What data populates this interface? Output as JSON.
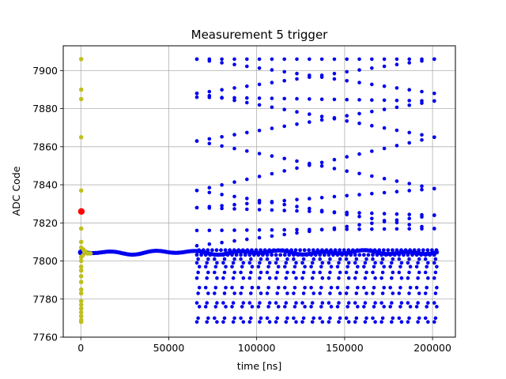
{
  "chart_data": {
    "type": "scatter",
    "title": "Measurement 5 trigger",
    "xlabel": "time [ns]",
    "ylabel": "ADC Code",
    "xlim": [
      -10000,
      213000
    ],
    "ylim": [
      7760,
      7913
    ],
    "xticks": [
      0,
      50000,
      100000,
      150000,
      200000
    ],
    "xtick_labels": [
      "0",
      "50000",
      "100000",
      "150000",
      "200000"
    ],
    "yticks": [
      7760,
      7780,
      7800,
      7820,
      7840,
      7860,
      7880,
      7900
    ],
    "ytick_labels": [
      "7760",
      "7780",
      "7800",
      "7820",
      "7840",
      "7860",
      "7880",
      "7900"
    ],
    "grid": true,
    "colors": {
      "blue": "#0000ee",
      "yellow": "#bfbf1f",
      "red": "#ff0000"
    },
    "baseline_level": 7804.5,
    "baseline_x_range": [
      0,
      203000
    ],
    "fan_x_range": [
      66000,
      201000
    ],
    "pulse_x_start": 66000,
    "pulse_x_step": 5000,
    "lower_levels": [
      7768,
      7770,
      7776,
      7778,
      7783,
      7786,
      7791,
      7794,
      7797,
      7799,
      7801
    ],
    "upper_lines": [
      {
        "y_start": 7906,
        "y_end": 7906
      },
      {
        "y_start": 7906,
        "y_end": 7888
      },
      {
        "y_start": 7888,
        "y_end": 7906
      },
      {
        "y_start": 7888,
        "y_end": 7865
      },
      {
        "y_start": 7886,
        "y_end": 7884
      },
      {
        "y_start": 7863,
        "y_end": 7838
      },
      {
        "y_start": 7863,
        "y_end": 7884
      },
      {
        "y_start": 7837,
        "y_end": 7865
      },
      {
        "y_start": 7837,
        "y_end": 7817
      },
      {
        "y_start": 7828,
        "y_end": 7838
      },
      {
        "y_start": 7828,
        "y_end": 7824
      },
      {
        "y_start": 7816,
        "y_end": 7817
      },
      {
        "y_start": 7808,
        "y_end": 7824
      }
    ],
    "yellow_points": [
      [
        200,
        7906
      ],
      [
        200,
        7890
      ],
      [
        200,
        7885
      ],
      [
        200,
        7865
      ],
      [
        200,
        7837
      ],
      [
        200,
        7817
      ],
      [
        200,
        7810
      ],
      [
        200,
        7807
      ],
      [
        200,
        7802
      ],
      [
        200,
        7800
      ],
      [
        200,
        7797
      ],
      [
        200,
        7795
      ],
      [
        200,
        7792
      ],
      [
        200,
        7789
      ],
      [
        200,
        7785
      ],
      [
        200,
        7783
      ],
      [
        200,
        7779
      ],
      [
        200,
        7777
      ],
      [
        200,
        7775
      ],
      [
        200,
        7773
      ],
      [
        200,
        7771
      ],
      [
        200,
        7769
      ],
      [
        200,
        7768
      ],
      [
        1500,
        7806
      ],
      [
        2500,
        7805
      ],
      [
        3500,
        7804
      ],
      [
        4500,
        7804
      ],
      [
        5500,
        7804
      ],
      [
        1200,
        7803
      ],
      [
        2000,
        7805
      ]
    ],
    "red_points": [
      [
        300,
        7826
      ]
    ]
  }
}
